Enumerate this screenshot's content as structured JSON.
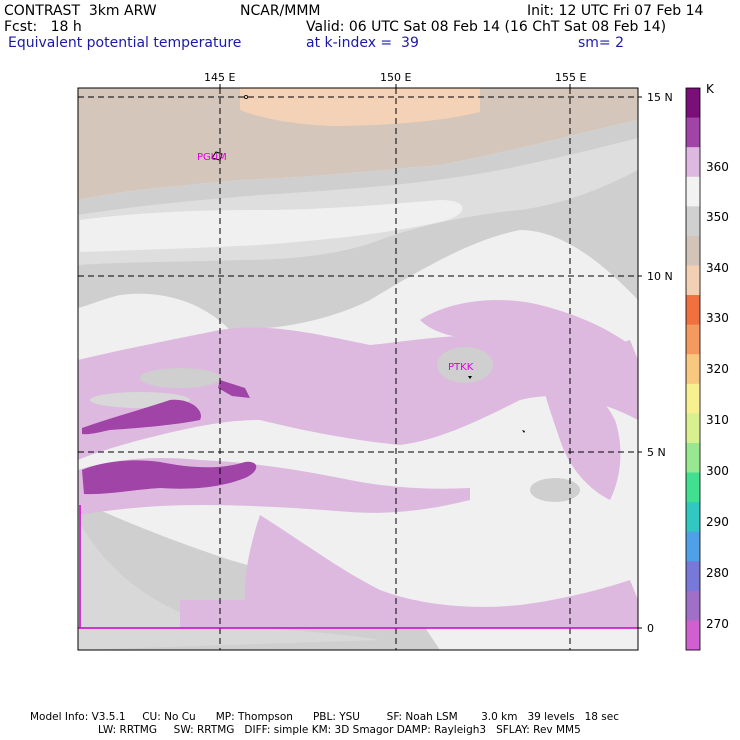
{
  "header": {
    "left_title": "CONTRAST  3km ARW",
    "center_title": "NCAR/MMM",
    "init": "Init: 12 UTC Fri 07 Feb 14",
    "fcst": "Fcst:   18 h",
    "valid": "Valid: 06 UTC Sat 08 Feb 14 (16 ChT Sat 08 Feb 14)",
    "field": "Equivalent potential temperature",
    "level": "at k-index =  39",
    "smoothing": "sm= 2"
  },
  "axes": {
    "lon_labels": [
      "145 E",
      "150 E",
      "155 E"
    ],
    "lat_labels": [
      "15 N",
      "10 N",
      "5 N",
      "0"
    ]
  },
  "stations": [
    "PGUM",
    "PTKK"
  ],
  "colorbar": {
    "unit": "K",
    "labels": [
      "360",
      "350",
      "340",
      "330",
      "320",
      "310",
      "300",
      "290",
      "280",
      "270"
    ],
    "colors": [
      "#7a0f7a",
      "#a044a8",
      "#ddb8e0",
      "#f2f2f2",
      "#d0d0d0",
      "#d2c4b8",
      "#f3cfb4",
      "#f07040",
      "#f49a60",
      "#f8c880",
      "#f8f090",
      "#d8f090",
      "#98e890",
      "#40e090",
      "#30c8c0",
      "#50a0e8",
      "#7878d8",
      "#a070c8",
      "#d060d0"
    ]
  },
  "footer": {
    "line1": "Model Info: V3.5.1     CU: No Cu      MP: Thompson      PBL: YSU        SF: Noah LSM       3.0 km   39 levels   18 sec",
    "line2": "LW: RRTMG     SW: RRTMG   DIFF: simple KM: 3D Smagor DAMP: Rayleigh3   SFLAY: Rev MM5"
  }
}
